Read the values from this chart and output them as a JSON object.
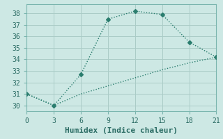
{
  "line1_x": [
    0,
    3,
    6,
    9,
    12,
    15,
    18,
    21
  ],
  "line1_y": [
    31,
    30,
    32.7,
    37.5,
    38.2,
    37.9,
    35.5,
    34.2
  ],
  "line2_x": [
    0,
    3,
    6,
    9,
    12,
    15,
    18,
    21
  ],
  "line2_y": [
    31,
    30,
    31.0,
    31.7,
    32.4,
    33.1,
    33.7,
    34.2
  ],
  "color": "#2a7d6e",
  "bg_color": "#cde8e4",
  "grid_color": "#aaccc7",
  "spine_color": "#7ab5ae",
  "xlabel": "Humidex (Indice chaleur)",
  "xlim": [
    0,
    21
  ],
  "ylim": [
    29.5,
    38.8
  ],
  "xticks": [
    0,
    3,
    6,
    9,
    12,
    15,
    18,
    21
  ],
  "yticks": [
    30,
    31,
    32,
    33,
    34,
    35,
    36,
    37,
    38
  ],
  "marker": "D",
  "markersize": 3,
  "linewidth": 1.0,
  "font_family": "monospace",
  "xlabel_fontsize": 8,
  "tick_fontsize": 7
}
